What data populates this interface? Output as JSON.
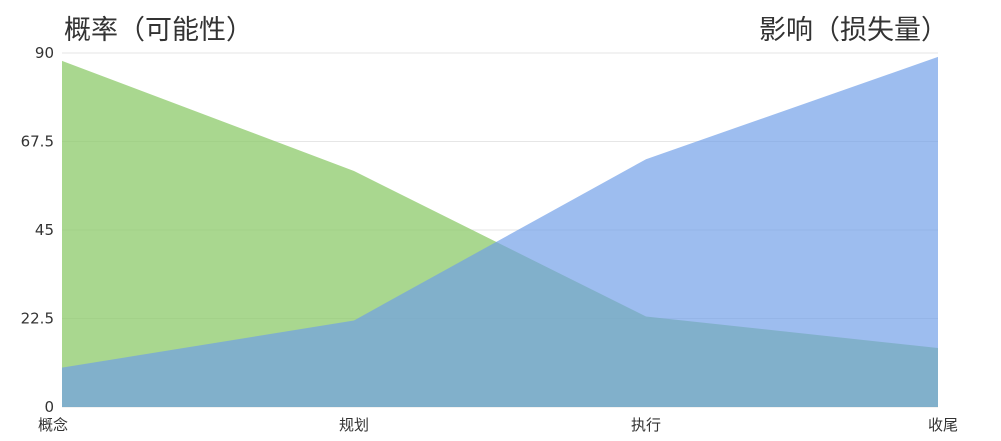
{
  "chart_data": {
    "type": "area",
    "title_left": "概率（可能性）",
    "title_right": "影响（损失量）",
    "categories": [
      "概念",
      "规划",
      "执行",
      "收尾"
    ],
    "yticks": [
      "0",
      "22.5",
      "45",
      "67.5",
      "90"
    ],
    "ylim": [
      0,
      90
    ],
    "grid": true,
    "series": [
      {
        "values": [
          88,
          60,
          23,
          15
        ],
        "color": "#8cc96a",
        "opacity": 0.75
      },
      {
        "values": [
          10,
          22,
          63,
          89
        ],
        "color": "#6f9ee8",
        "opacity": 0.68
      }
    ]
  }
}
